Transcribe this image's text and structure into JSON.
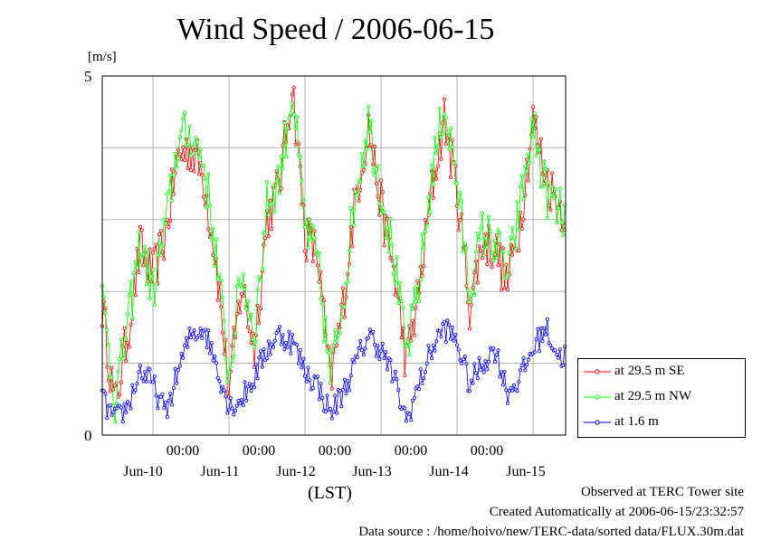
{
  "chart_data": {
    "type": "line",
    "title": "Wind Speed / 2006-06-15",
    "ylabel": "[m/s]",
    "xlabel": "(LST)",
    "ylim": [
      0,
      5
    ],
    "yticks": [
      "0",
      "5"
    ],
    "xlim": [
      "2006-06-09T08:00",
      "2006-06-15T20:00"
    ],
    "x_tick_labels": [
      "00:00",
      "00:00",
      "00:00",
      "00:00",
      "00:00"
    ],
    "x_date_labels": [
      "Jun-10",
      "Jun-11",
      "Jun-12",
      "Jun-13",
      "Jun-14",
      "Jun-15"
    ],
    "legend_position": "bottom-right-outside",
    "grid": true,
    "series": [
      {
        "name": "at 29.5 m SE",
        "color": "#ff0000",
        "x": [
          "06-09 08:00",
          "06-09 12:00",
          "06-09 16:00",
          "06-09 20:00",
          "06-10 00:00",
          "06-10 04:00",
          "06-10 08:00",
          "06-10 12:00",
          "06-10 16:00",
          "06-10 20:00",
          "06-11 00:00",
          "06-11 04:00",
          "06-11 08:00",
          "06-11 12:00",
          "06-11 16:00",
          "06-11 20:00",
          "06-12 00:00",
          "06-12 04:00",
          "06-12 08:00",
          "06-12 12:00",
          "06-12 16:00",
          "06-12 20:00",
          "06-13 00:00",
          "06-13 04:00",
          "06-13 08:00",
          "06-13 12:00",
          "06-13 16:00",
          "06-13 20:00",
          "06-14 00:00",
          "06-14 04:00",
          "06-14 08:00",
          "06-14 12:00",
          "06-14 16:00",
          "06-14 20:00",
          "06-15 00:00",
          "06-15 04:00",
          "06-15 08:00",
          "06-15 12:00",
          "06-15 16:00",
          "06-15 20:00"
        ],
        "values": [
          1.8,
          0.4,
          1.4,
          2.6,
          2.2,
          2.8,
          3.9,
          4.0,
          3.6,
          2.4,
          0.6,
          2.1,
          1.2,
          3.0,
          3.5,
          4.9,
          2.8,
          2.5,
          0.7,
          1.8,
          3.3,
          4.3,
          3.2,
          2.3,
          1.0,
          2.0,
          3.4,
          4.4,
          3.4,
          1.8,
          2.7,
          2.6,
          2.1,
          3.0,
          4.4,
          3.6,
          3.2,
          3.1,
          2.9,
          2.2
        ]
      },
      {
        "name": "at 29.5 m NW",
        "color": "#00ff00",
        "x": [
          "06-09 08:00",
          "06-09 12:00",
          "06-09 16:00",
          "06-09 20:00",
          "06-10 00:00",
          "06-10 04:00",
          "06-10 08:00",
          "06-10 12:00",
          "06-10 16:00",
          "06-10 20:00",
          "06-11 00:00",
          "06-11 04:00",
          "06-11 08:00",
          "06-11 12:00",
          "06-11 16:00",
          "06-11 20:00",
          "06-12 00:00",
          "06-12 04:00",
          "06-12 08:00",
          "06-12 12:00",
          "06-12 16:00",
          "06-12 20:00",
          "06-13 00:00",
          "06-13 04:00",
          "06-13 08:00",
          "06-13 12:00",
          "06-13 16:00",
          "06-13 20:00",
          "06-14 00:00",
          "06-14 04:00",
          "06-14 08:00",
          "06-14 12:00",
          "06-14 16:00",
          "06-14 20:00",
          "06-15 00:00",
          "06-15 04:00",
          "06-15 08:00",
          "06-15 12:00",
          "06-15 16:00",
          "06-15 20:00"
        ],
        "values": [
          1.9,
          0.5,
          1.5,
          2.7,
          2.0,
          2.9,
          4.1,
          4.2,
          3.8,
          2.5,
          0.8,
          2.3,
          1.4,
          3.2,
          3.6,
          4.8,
          2.9,
          2.4,
          0.8,
          1.9,
          3.4,
          4.4,
          3.4,
          2.5,
          1.1,
          2.1,
          3.6,
          4.6,
          3.5,
          2.0,
          2.8,
          2.7,
          2.2,
          3.2,
          4.3,
          3.4,
          3.1,
          3.0,
          3.1,
          2.4
        ]
      },
      {
        "name": "at 1.6 m",
        "color": "#0000ff",
        "x": [
          "06-09 08:00",
          "06-09 12:00",
          "06-09 16:00",
          "06-09 20:00",
          "06-10 00:00",
          "06-10 04:00",
          "06-10 08:00",
          "06-10 12:00",
          "06-10 16:00",
          "06-10 20:00",
          "06-11 00:00",
          "06-11 04:00",
          "06-11 08:00",
          "06-11 12:00",
          "06-11 16:00",
          "06-11 20:00",
          "06-12 00:00",
          "06-12 04:00",
          "06-12 08:00",
          "06-12 12:00",
          "06-12 16:00",
          "06-12 20:00",
          "06-13 00:00",
          "06-13 04:00",
          "06-13 08:00",
          "06-13 12:00",
          "06-13 16:00",
          "06-13 20:00",
          "06-14 00:00",
          "06-14 04:00",
          "06-14 08:00",
          "06-14 12:00",
          "06-14 16:00",
          "06-14 20:00",
          "06-15 00:00",
          "06-15 04:00",
          "06-15 08:00",
          "06-15 12:00",
          "06-15 16:00",
          "06-15 20:00"
        ],
        "values": [
          0.5,
          0.2,
          0.4,
          0.9,
          0.7,
          0.3,
          0.9,
          1.4,
          1.5,
          1.0,
          0.4,
          0.5,
          0.8,
          1.2,
          1.4,
          1.3,
          0.9,
          0.7,
          0.3,
          0.6,
          1.0,
          1.4,
          1.2,
          0.8,
          0.2,
          0.7,
          1.2,
          1.5,
          1.3,
          0.7,
          1.0,
          1.2,
          0.6,
          0.8,
          1.2,
          1.5,
          1.1,
          1.1,
          1.0,
          0.6
        ]
      }
    ]
  },
  "footer": {
    "line1": "Observed at TERC Tower site",
    "line2": "Created Automatically at 2006-06-15/23:32:57",
    "line3": "Data source : /home/hoivo/new/TERC-data/sorted  data/FLUX.30m.dat"
  }
}
